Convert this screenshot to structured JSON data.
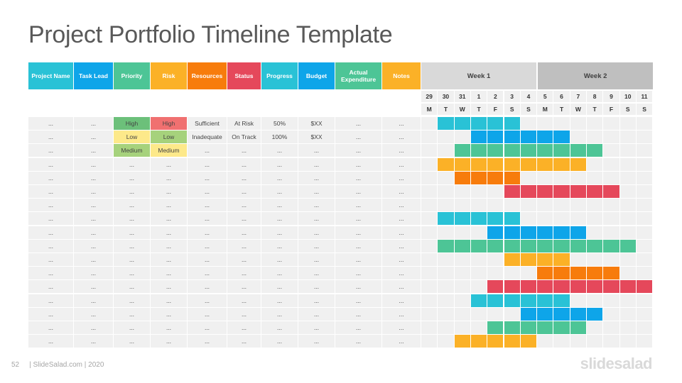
{
  "title": "Project Portfolio Timeline Template",
  "headers": [
    {
      "label": "Project Name",
      "color": "#29c2d6"
    },
    {
      "label": "Task Lead",
      "color": "#0ea5e9"
    },
    {
      "label": "Priority",
      "color": "#4dc596"
    },
    {
      "label": "Risk",
      "color": "#fbb127"
    },
    {
      "label": "Resources",
      "color": "#f77c0c"
    },
    {
      "label": "Status",
      "color": "#e5485b"
    },
    {
      "label": "Progress",
      "color": "#29c2d6"
    },
    {
      "label": "Budget",
      "color": "#0ea5e9"
    },
    {
      "label": "Actual Expenditure",
      "color": "#4dc596"
    },
    {
      "label": "Notes",
      "color": "#fbb127"
    }
  ],
  "weeks": [
    "Week 1",
    "Week 2"
  ],
  "days": [
    {
      "num": "29",
      "letter": "M"
    },
    {
      "num": "30",
      "letter": "T"
    },
    {
      "num": "31",
      "letter": "W"
    },
    {
      "num": "1",
      "letter": "T"
    },
    {
      "num": "2",
      "letter": "F"
    },
    {
      "num": "3",
      "letter": "S"
    },
    {
      "num": "4",
      "letter": "S"
    },
    {
      "num": "5",
      "letter": "M"
    },
    {
      "num": "6",
      "letter": "T"
    },
    {
      "num": "7",
      "letter": "W"
    },
    {
      "num": "8",
      "letter": "T"
    },
    {
      "num": "9",
      "letter": "F"
    },
    {
      "num": "10",
      "letter": "S"
    },
    {
      "num": "11",
      "letter": "S"
    }
  ],
  "rows": [
    {
      "cells": [
        "...",
        "...",
        "High",
        "High",
        "Sufficient",
        "At Risk",
        "50%",
        "$XX",
        "...",
        "..."
      ],
      "cellColors": {
        "2": "#6cc07a",
        "3": "#f07070"
      },
      "bar": {
        "start": 1,
        "end": 5,
        "color": "#29c2d6"
      }
    },
    {
      "cells": [
        "...",
        "...",
        "Low",
        "Low",
        "Inadequate",
        "On Track",
        "100%",
        "$XX",
        "...",
        "..."
      ],
      "cellColors": {
        "2": "#fde98a",
        "3": "#a6d27c"
      },
      "bar": {
        "start": 3,
        "end": 8,
        "color": "#0ea5e9"
      }
    },
    {
      "cells": [
        "...",
        "...",
        "Medium",
        "Medium",
        "...",
        "...",
        "...",
        "...",
        "...",
        "..."
      ],
      "cellColors": {
        "2": "#a6d27c",
        "3": "#fde98a"
      },
      "bar": {
        "start": 2,
        "end": 10,
        "color": "#4dc596"
      }
    },
    {
      "cells": [
        "...",
        "...",
        "...",
        "...",
        "...",
        "...",
        "...",
        "...",
        "...",
        "..."
      ],
      "bar": {
        "start": 1,
        "end": 9,
        "color": "#fbb127"
      }
    },
    {
      "cells": [
        "...",
        "...",
        "...",
        "...",
        "...",
        "...",
        "...",
        "...",
        "...",
        "..."
      ],
      "bar": {
        "start": 2,
        "end": 5,
        "color": "#f77c0c"
      }
    },
    {
      "cells": [
        "...",
        "...",
        "...",
        "...",
        "...",
        "...",
        "...",
        "...",
        "...",
        "..."
      ],
      "bar": {
        "start": 5,
        "end": 11,
        "color": "#e5485b"
      }
    },
    {
      "cells": [
        "...",
        "...",
        "...",
        "...",
        "...",
        "...",
        "...",
        "...",
        "...",
        "..."
      ]
    },
    {
      "cells": [
        "...",
        "...",
        "...",
        "...",
        "...",
        "...",
        "...",
        "...",
        "...",
        "..."
      ],
      "bar": {
        "start": 1,
        "end": 5,
        "color": "#29c2d6"
      }
    },
    {
      "cells": [
        "...",
        "...",
        "...",
        "...",
        "...",
        "...",
        "...",
        "...",
        "...",
        "..."
      ],
      "bar": {
        "start": 4,
        "end": 9,
        "color": "#0ea5e9"
      }
    },
    {
      "cells": [
        "...",
        "...",
        "...",
        "...",
        "...",
        "...",
        "...",
        "...",
        "...",
        "..."
      ],
      "bar": {
        "start": 1,
        "end": 12,
        "color": "#4dc596"
      }
    },
    {
      "cells": [
        "...",
        "...",
        "...",
        "...",
        "...",
        "...",
        "...",
        "...",
        "...",
        "..."
      ],
      "bar": {
        "start": 5,
        "end": 8,
        "color": "#fbb127"
      }
    },
    {
      "cells": [
        "...",
        "...",
        "...",
        "...",
        "...",
        "...",
        "...",
        "...",
        "...",
        "..."
      ],
      "bar": {
        "start": 7,
        "end": 11,
        "color": "#f77c0c"
      }
    },
    {
      "cells": [
        "...",
        "...",
        "...",
        "...",
        "...",
        "...",
        "...",
        "...",
        "...",
        "..."
      ],
      "bar": {
        "start": 4,
        "end": 13,
        "color": "#e5485b"
      }
    },
    {
      "cells": [
        "...",
        "...",
        "...",
        "...",
        "...",
        "...",
        "...",
        "...",
        "...",
        "..."
      ],
      "bar": {
        "start": 3,
        "end": 8,
        "color": "#29c2d6"
      }
    },
    {
      "cells": [
        "...",
        "...",
        "...",
        "...",
        "...",
        "...",
        "...",
        "...",
        "...",
        "..."
      ],
      "bar": {
        "start": 6,
        "end": 10,
        "color": "#0ea5e9"
      }
    },
    {
      "cells": [
        "...",
        "...",
        "...",
        "...",
        "...",
        "...",
        "...",
        "...",
        "...",
        "..."
      ],
      "bar": {
        "start": 4,
        "end": 9,
        "color": "#4dc596"
      }
    },
    {
      "cells": [
        "...",
        "...",
        "...",
        "...",
        "...",
        "...",
        "...",
        "...",
        "...",
        "..."
      ],
      "bar": {
        "start": 2,
        "end": 6,
        "color": "#fbb127"
      }
    }
  ],
  "footer": {
    "page": "52",
    "text": "| SlideSalad.com | 2020"
  },
  "logo": "slidesalad"
}
